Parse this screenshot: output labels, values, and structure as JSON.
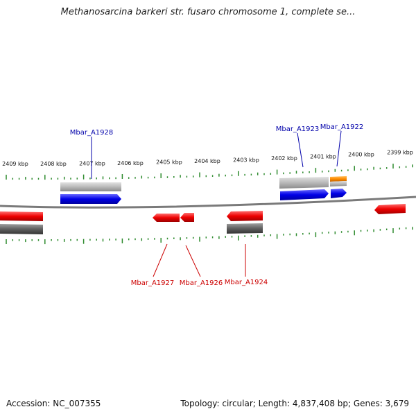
{
  "title": "Methanosarcina barkeri str. fusaro chromosome 1, complete se...",
  "footer": {
    "accession": "Accession: NC_007355",
    "summary": "Topology: circular; Length: 4,837,408 bp; Genes: 3,679"
  },
  "colors": {
    "backbone": "#7a7a7a",
    "tick": "#2e8b2e",
    "forward_gene": "#0000e0",
    "reverse_gene": "#e00000",
    "forward_label": "#0000aa",
    "reverse_label": "#cc0000",
    "cds_gray": "#b8b8b8",
    "cds_dark": "#606060",
    "rna_orange": "#ff8c00"
  },
  "scale": {
    "labels": [
      "2409 kbp",
      "2408 kbp",
      "2407 kbp",
      "2406 kbp",
      "2405 kbp",
      "2404 kbp",
      "2403 kbp",
      "2402 kbp",
      "2401 kbp",
      "2400 kbp",
      "2399 kbp"
    ]
  },
  "genes": [
    {
      "name": "Mbar_A1928",
      "strand": "forward"
    },
    {
      "name": "Mbar_A1923",
      "strand": "forward"
    },
    {
      "name": "Mbar_A1922",
      "strand": "forward"
    },
    {
      "name": "Mbar_A1927",
      "strand": "reverse"
    },
    {
      "name": "Mbar_A1926",
      "strand": "reverse"
    },
    {
      "name": "Mbar_A1924",
      "strand": "reverse"
    }
  ]
}
